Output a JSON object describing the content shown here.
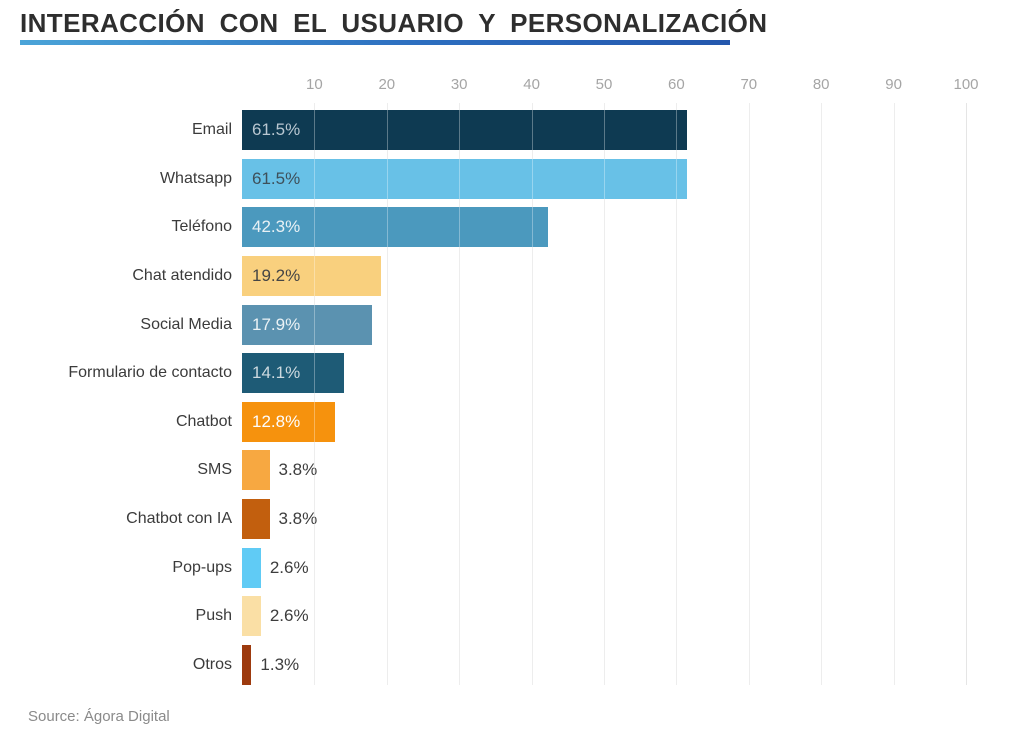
{
  "title": "INTERACCIÓN CON EL USUARIO Y PERSONALIZACIÓN",
  "source": "Source: Ágora Digital",
  "colors": {
    "background": "#ffffff",
    "title_text": "#2e2e2e",
    "underline_gradient": [
      "#4ba4d8",
      "#2d6fc0",
      "#2457ad"
    ],
    "axis_tick_text": "#a5a5a5",
    "gridline": "#e5e5e5",
    "category_text": "#3b3b3b",
    "outside_value_text": "#3d3d3d",
    "source_text": "#8a8a8a"
  },
  "chart_data": {
    "type": "bar",
    "orientation": "horizontal",
    "title": "INTERACCIÓN CON EL USUARIO Y PERSONALIZACIÓN",
    "categories": [
      "Email",
      "Whatsapp",
      "Teléfono",
      "Chat atendido",
      "Social Media",
      "Formulario de contacto",
      "Chatbot",
      "SMS",
      "Chatbot con IA",
      "Pop-ups",
      "Push",
      "Otros"
    ],
    "values": [
      61.5,
      61.5,
      42.3,
      19.2,
      17.9,
      14.1,
      12.8,
      3.8,
      3.8,
      2.6,
      2.6,
      1.3
    ],
    "value_labels": [
      "61.5%",
      "61.5%",
      "42.3%",
      "19.2%",
      "17.9%",
      "14.1%",
      "12.8%",
      "3.8%",
      "3.8%",
      "2.6%",
      "2.6%",
      "1.3%"
    ],
    "bar_colors": [
      "#0e3a52",
      "#68c1e7",
      "#4b99be",
      "#f9d07e",
      "#5b92b0",
      "#1e5b76",
      "#f6920d",
      "#f7a841",
      "#c25f0e",
      "#60cbf5",
      "#fadfa5",
      "#9d3a0e"
    ],
    "value_text_colors": [
      "#b9c7d1",
      "#3e505a",
      "#e8f1f5",
      "#454545",
      "#ebf2f5",
      "#ccd9df",
      "#fdfdfd",
      "#3d3d3d",
      "#3d3d3d",
      "#3d3d3d",
      "#3d3d3d",
      "#3d3d3d"
    ],
    "value_label_inside": [
      true,
      true,
      true,
      true,
      true,
      true,
      true,
      false,
      false,
      false,
      false,
      false
    ],
    "x_ticks": [
      10,
      20,
      30,
      40,
      50,
      60,
      70,
      80,
      90,
      100
    ],
    "xlim": [
      0,
      100
    ],
    "grid": true,
    "legend": "none",
    "source": "Source: Ágora Digital"
  }
}
